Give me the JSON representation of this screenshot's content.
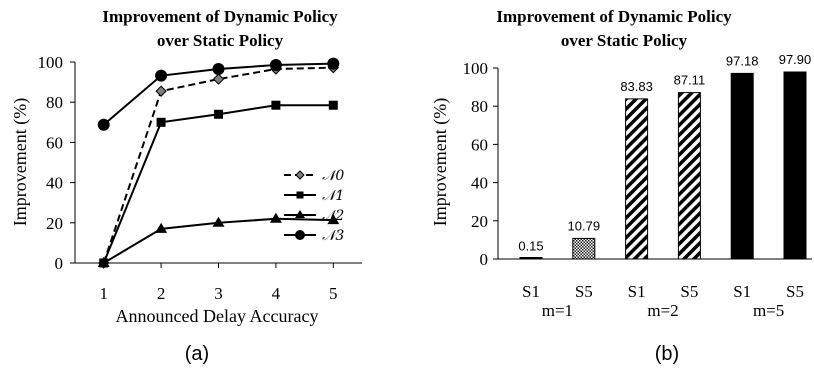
{
  "chart_data": [
    {
      "type": "line",
      "title_lines": [
        "Improvement of Dynamic Policy",
        "over Static Policy"
      ],
      "xlabel": "Announced Delay Accuracy",
      "ylabel": "Improvement (%)",
      "x": [
        1,
        2,
        3,
        4,
        5
      ],
      "ylim": [
        0,
        100
      ],
      "yticks": [
        0,
        20,
        40,
        60,
        80,
        100
      ],
      "grid": false,
      "legend_position": "right",
      "series": [
        {
          "name": "𝒩0",
          "values": [
            0,
            85.5,
            91.5,
            96.5,
            97.2
          ],
          "marker": "diamond",
          "dash": "dashed",
          "color": "#000000",
          "marker_fill": "#808080"
        },
        {
          "name": "𝒩1",
          "values": [
            0,
            70,
            74,
            78.5,
            78.5
          ],
          "marker": "square",
          "dash": "solid",
          "color": "#000000",
          "marker_fill": "#000000"
        },
        {
          "name": "𝒩2",
          "values": [
            0,
            17,
            20,
            22,
            21.3
          ],
          "marker": "triangle",
          "dash": "solid",
          "color": "#000000",
          "marker_fill": "#000000"
        },
        {
          "name": "𝒩3",
          "values": [
            68.8,
            93.2,
            96.5,
            98.5,
            99.2
          ],
          "marker": "circle",
          "dash": "solid",
          "color": "#000000",
          "marker_fill": "#000000"
        }
      ],
      "caption": "(a)"
    },
    {
      "type": "bar",
      "title_lines": [
        "Improvement of Dynamic Policy",
        "over Static Policy"
      ],
      "ylabel": "Improvement (%)",
      "categories": [
        "S1",
        "S5",
        "S1",
        "S5",
        "S1",
        "S5"
      ],
      "groups": [
        "m=1",
        "m=2",
        "m=5"
      ],
      "values": [
        0.15,
        10.79,
        83.83,
        87.11,
        97.18,
        97.9
      ],
      "value_labels": [
        "0.15",
        "10.79",
        "83.83",
        "87.11",
        "97.18",
        "97.90"
      ],
      "patterns": [
        "solid",
        "checker",
        "hatch",
        "hatch",
        "solid",
        "solid"
      ],
      "ylim": [
        0,
        100
      ],
      "yticks": [
        0,
        20,
        40,
        60,
        80,
        100
      ],
      "grid": false,
      "caption": "(b)"
    }
  ]
}
